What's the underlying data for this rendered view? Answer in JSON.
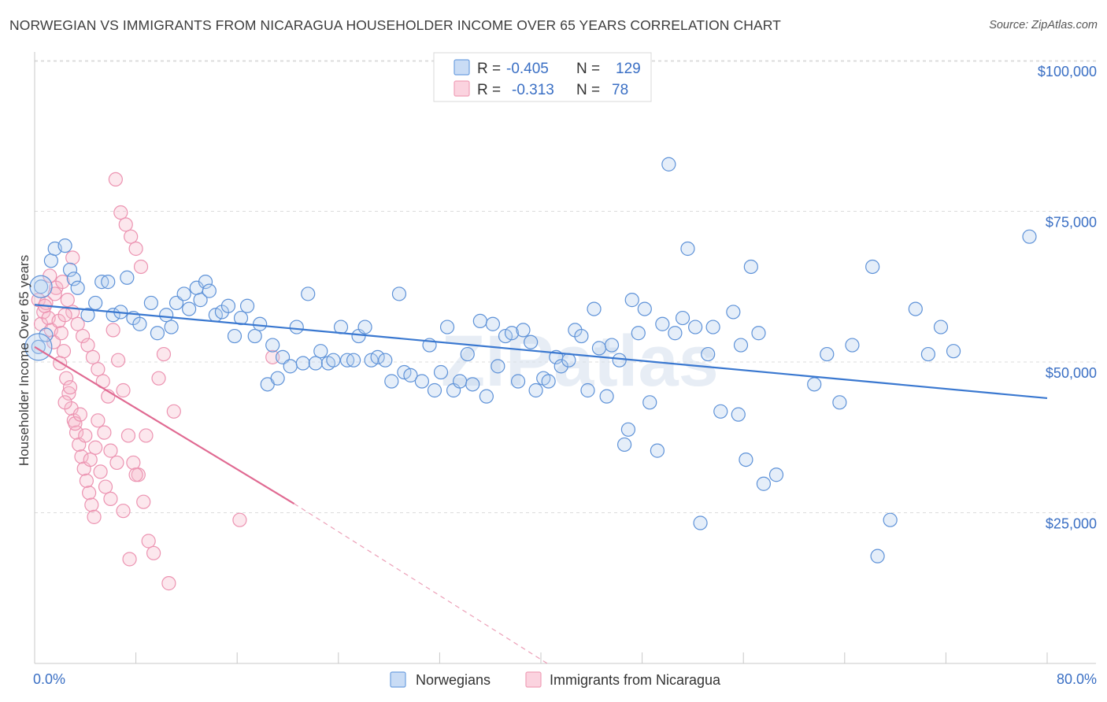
{
  "title": "NORWEGIAN VS IMMIGRANTS FROM NICARAGUA HOUSEHOLDER INCOME OVER 65 YEARS CORRELATION CHART",
  "source": "Source: ZipAtlas.com",
  "watermark": "ZIPatlas",
  "colors": {
    "blue": "#6fa0e0",
    "blue_line": "#3a78d0",
    "pink": "#f0a0b8",
    "pink_line": "#e06a92",
    "axis_text": "#3a6fc4"
  },
  "chart_data": {
    "type": "scatter",
    "title": "NORWEGIAN VS IMMIGRANTS FROM NICARAGUA HOUSEHOLDER INCOME OVER 65 YEARS CORRELATION CHART",
    "xlabel": "",
    "ylabel": "Householder Income Over 65 years",
    "xlim": [
      0,
      80
    ],
    "ylim": [
      0,
      105000
    ],
    "x_tick_labels": [
      "0.0%",
      "80.0%"
    ],
    "y_ticks": [
      {
        "value": 25000,
        "label": "$25,000"
      },
      {
        "value": 50000,
        "label": "$50,000"
      },
      {
        "value": 75000,
        "label": "$75,000"
      },
      {
        "value": 100000,
        "label": "$100,000"
      }
    ],
    "grid": true,
    "legend": {
      "placement": "top-center",
      "rows": [
        {
          "r_label": "R =",
          "r_value": "-0.405",
          "n_label": "N =",
          "n_value": "129"
        },
        {
          "r_label": "R =",
          "r_value": "-0.313",
          "n_label": "N =",
          "n_value": "78"
        }
      ]
    },
    "series": [
      {
        "name": "Norwegians",
        "color": "#6fa0e0",
        "trend": {
          "x": [
            0,
            80
          ],
          "y": [
            59500,
            44000
          ],
          "style": "solid"
        },
        "points": [
          [
            0.3,
            52500
          ],
          [
            0.5,
            62500
          ],
          [
            0.9,
            54500
          ],
          [
            1.3,
            66800
          ],
          [
            1.6,
            68800
          ],
          [
            2.4,
            69300
          ],
          [
            2.8,
            65300
          ],
          [
            3.1,
            63800
          ],
          [
            3.4,
            62300
          ],
          [
            4.2,
            57800
          ],
          [
            4.8,
            59800
          ],
          [
            5.3,
            63300
          ],
          [
            5.8,
            63300
          ],
          [
            6.2,
            57800
          ],
          [
            6.8,
            58300
          ],
          [
            7.3,
            64000
          ],
          [
            7.8,
            57300
          ],
          [
            8.3,
            56300
          ],
          [
            9.2,
            59800
          ],
          [
            9.7,
            54800
          ],
          [
            10.4,
            57800
          ],
          [
            10.8,
            55800
          ],
          [
            11.2,
            59800
          ],
          [
            11.8,
            61300
          ],
          [
            12.2,
            58800
          ],
          [
            12.8,
            62300
          ],
          [
            13.1,
            60300
          ],
          [
            13.5,
            63300
          ],
          [
            13.8,
            61800
          ],
          [
            14.3,
            57800
          ],
          [
            14.8,
            58300
          ],
          [
            15.3,
            59300
          ],
          [
            15.8,
            54300
          ],
          [
            16.3,
            57300
          ],
          [
            16.8,
            59300
          ],
          [
            17.4,
            54300
          ],
          [
            17.8,
            56300
          ],
          [
            18.4,
            46300
          ],
          [
            18.8,
            52800
          ],
          [
            19.2,
            47300
          ],
          [
            19.6,
            50800
          ],
          [
            20.2,
            49300
          ],
          [
            20.7,
            55800
          ],
          [
            21.2,
            49800
          ],
          [
            21.6,
            61300
          ],
          [
            22.2,
            49800
          ],
          [
            22.6,
            51800
          ],
          [
            23.2,
            49800
          ],
          [
            23.6,
            50300
          ],
          [
            24.2,
            55800
          ],
          [
            24.7,
            50300
          ],
          [
            25.2,
            50300
          ],
          [
            25.6,
            54300
          ],
          [
            26.1,
            55800
          ],
          [
            26.6,
            50300
          ],
          [
            27.1,
            50800
          ],
          [
            27.7,
            50300
          ],
          [
            28.2,
            46800
          ],
          [
            28.8,
            61300
          ],
          [
            29.2,
            48300
          ],
          [
            29.7,
            47800
          ],
          [
            30.6,
            46800
          ],
          [
            31.2,
            52800
          ],
          [
            31.6,
            45300
          ],
          [
            32.1,
            48300
          ],
          [
            32.6,
            55800
          ],
          [
            33.1,
            45300
          ],
          [
            33.6,
            46800
          ],
          [
            34.2,
            51300
          ],
          [
            34.6,
            46300
          ],
          [
            35.2,
            56800
          ],
          [
            35.7,
            44300
          ],
          [
            36.2,
            56300
          ],
          [
            36.6,
            49300
          ],
          [
            37.2,
            54300
          ],
          [
            37.7,
            54800
          ],
          [
            38.2,
            46800
          ],
          [
            38.6,
            55300
          ],
          [
            39.2,
            53300
          ],
          [
            39.6,
            45300
          ],
          [
            40.2,
            47300
          ],
          [
            40.6,
            46800
          ],
          [
            41.2,
            50800
          ],
          [
            41.6,
            49300
          ],
          [
            42.2,
            50300
          ],
          [
            42.7,
            55300
          ],
          [
            43.2,
            54300
          ],
          [
            43.7,
            45300
          ],
          [
            44.2,
            58800
          ],
          [
            44.6,
            52300
          ],
          [
            45.2,
            44300
          ],
          [
            45.6,
            52800
          ],
          [
            46.2,
            50300
          ],
          [
            46.6,
            36300
          ],
          [
            46.9,
            38800
          ],
          [
            47.2,
            60300
          ],
          [
            47.7,
            54800
          ],
          [
            48.2,
            58800
          ],
          [
            48.6,
            43300
          ],
          [
            49.2,
            35300
          ],
          [
            49.6,
            56300
          ],
          [
            50.1,
            82800
          ],
          [
            50.6,
            54800
          ],
          [
            51.2,
            57300
          ],
          [
            51.6,
            68800
          ],
          [
            52.2,
            55800
          ],
          [
            52.6,
            23300
          ],
          [
            53.2,
            51300
          ],
          [
            53.6,
            55800
          ],
          [
            54.2,
            41800
          ],
          [
            55.2,
            58300
          ],
          [
            55.6,
            41300
          ],
          [
            55.8,
            52800
          ],
          [
            56.2,
            33800
          ],
          [
            56.6,
            65800
          ],
          [
            57.2,
            54800
          ],
          [
            57.6,
            29800
          ],
          [
            58.6,
            31300
          ],
          [
            61.6,
            46300
          ],
          [
            62.6,
            51300
          ],
          [
            63.6,
            43300
          ],
          [
            64.6,
            52800
          ],
          [
            66.2,
            65800
          ],
          [
            67.6,
            23800
          ],
          [
            66.6,
            17800
          ],
          [
            69.6,
            58800
          ],
          [
            70.6,
            51300
          ],
          [
            71.6,
            55800
          ],
          [
            72.6,
            51800
          ],
          [
            78.6,
            70800
          ]
        ]
      },
      {
        "name": "Immigrants from Nicaragua",
        "color": "#f0a0b8",
        "trend": {
          "x": [
            0,
            20.5
          ],
          "y": [
            52500,
            26500
          ],
          "style": "solid",
          "extended_to": [
            40.5,
            0
          ],
          "extended_style": "dashed"
        },
        "points": [
          [
            0.3,
            60300
          ],
          [
            0.5,
            56300
          ],
          [
            0.7,
            58300
          ],
          [
            0.9,
            59800
          ],
          [
            1.1,
            57300
          ],
          [
            1.3,
            55300
          ],
          [
            1.5,
            53300
          ],
          [
            1.7,
            62300
          ],
          [
            1.9,
            56800
          ],
          [
            2.1,
            54800
          ],
          [
            2.3,
            51800
          ],
          [
            2.5,
            47300
          ],
          [
            2.7,
            44800
          ],
          [
            2.9,
            42300
          ],
          [
            3.1,
            40300
          ],
          [
            3.3,
            38300
          ],
          [
            3.5,
            36300
          ],
          [
            3.7,
            34300
          ],
          [
            3.9,
            32300
          ],
          [
            4.1,
            30300
          ],
          [
            4.3,
            28300
          ],
          [
            4.5,
            26300
          ],
          [
            4.7,
            24300
          ],
          [
            2.0,
            49800
          ],
          [
            2.4,
            43300
          ],
          [
            2.8,
            45800
          ],
          [
            3.2,
            39800
          ],
          [
            3.6,
            41300
          ],
          [
            4.0,
            37800
          ],
          [
            4.4,
            33800
          ],
          [
            4.8,
            35800
          ],
          [
            5.2,
            31800
          ],
          [
            5.6,
            29300
          ],
          [
            6.0,
            27300
          ],
          [
            6.4,
            80300
          ],
          [
            6.8,
            74800
          ],
          [
            7.2,
            72800
          ],
          [
            7.6,
            70800
          ],
          [
            8.0,
            68800
          ],
          [
            8.4,
            65800
          ],
          [
            6.2,
            55300
          ],
          [
            6.6,
            50300
          ],
          [
            7.0,
            45300
          ],
          [
            7.4,
            37800
          ],
          [
            7.8,
            33300
          ],
          [
            8.2,
            31300
          ],
          [
            8.6,
            26800
          ],
          [
            9.0,
            20300
          ],
          [
            9.4,
            18300
          ],
          [
            9.8,
            47300
          ],
          [
            10.2,
            51300
          ],
          [
            10.6,
            13300
          ],
          [
            11.0,
            41800
          ],
          [
            2.2,
            63300
          ],
          [
            2.6,
            60300
          ],
          [
            3.0,
            58300
          ],
          [
            3.4,
            56300
          ],
          [
            3.8,
            54300
          ],
          [
            4.2,
            52800
          ],
          [
            4.6,
            50800
          ],
          [
            5.0,
            48800
          ],
          [
            5.4,
            46800
          ],
          [
            5.8,
            44300
          ],
          [
            1.2,
            64300
          ],
          [
            1.6,
            61300
          ],
          [
            0.8,
            59300
          ],
          [
            5.0,
            40300
          ],
          [
            5.5,
            38300
          ],
          [
            6.0,
            35300
          ],
          [
            6.5,
            33300
          ],
          [
            7.0,
            25300
          ],
          [
            7.5,
            17300
          ],
          [
            8.0,
            31300
          ],
          [
            8.8,
            37800
          ],
          [
            16.2,
            23800
          ],
          [
            18.8,
            50800
          ],
          [
            3.0,
            67300
          ],
          [
            2.4,
            57800
          ]
        ]
      }
    ]
  },
  "bottom_legend": [
    "Norwegians",
    "Immigrants from Nicaragua"
  ]
}
